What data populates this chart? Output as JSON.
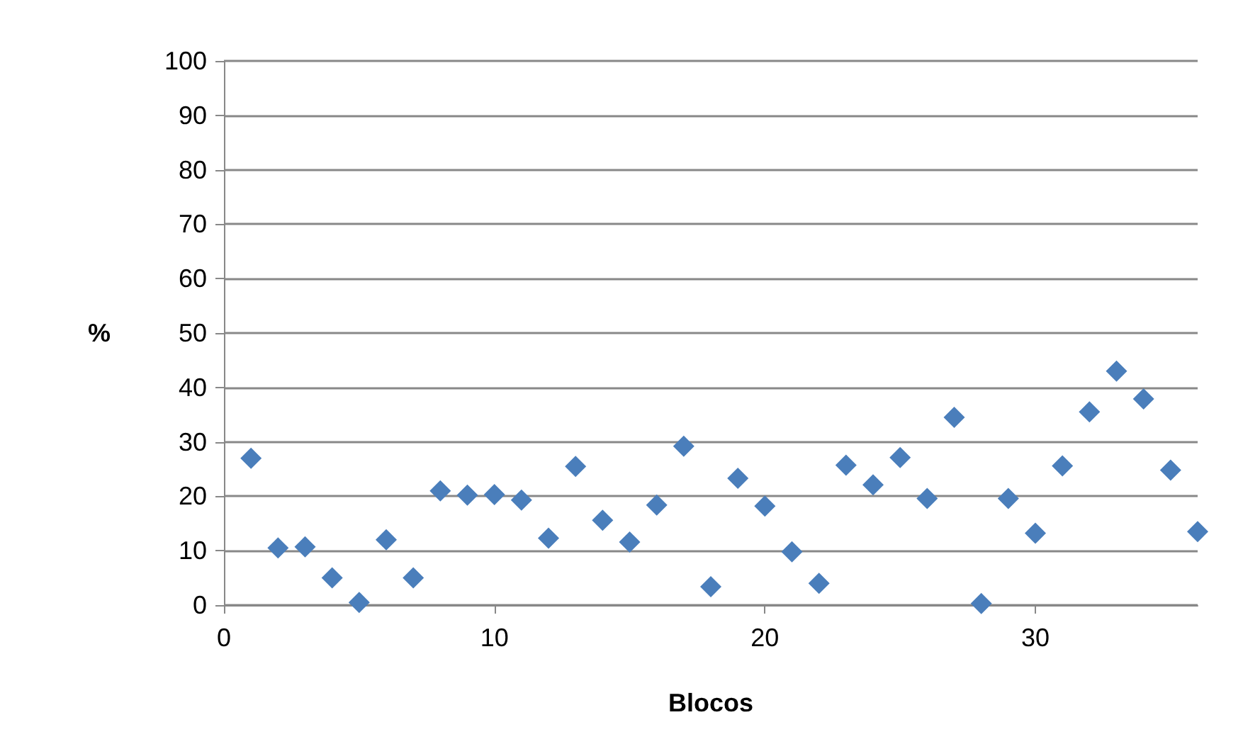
{
  "chart_data": {
    "type": "scatter",
    "xlabel": "Blocos",
    "ylabel": "%",
    "x": [
      1,
      2,
      3,
      4,
      5,
      6,
      7,
      8,
      9,
      10,
      11,
      12,
      13,
      14,
      15,
      16,
      17,
      18,
      19,
      20,
      21,
      22,
      23,
      24,
      25,
      26,
      27,
      28,
      29,
      30,
      31,
      32,
      33,
      34,
      35,
      36
    ],
    "values": [
      27,
      10.5,
      10.7,
      5,
      0.5,
      12,
      5,
      21,
      20.2,
      20.3,
      19.3,
      12.3,
      25.5,
      15.6,
      11.6,
      18.4,
      29.2,
      3.4,
      23.3,
      18.2,
      9.8,
      4,
      25.7,
      22.1,
      27.1,
      19.6,
      34.5,
      0.3,
      19.6,
      13.2,
      25.6,
      35.5,
      43,
      37.9,
      24.8,
      13.5
    ],
    "color": "#4a7ebb",
    "marker": "diamond",
    "xlim": [
      0,
      36
    ],
    "xticks": [
      0,
      10,
      20,
      30
    ],
    "ylim": [
      0,
      100
    ],
    "yticks": [
      0,
      10,
      20,
      30,
      40,
      50,
      60,
      70,
      80,
      90,
      100
    ],
    "grid": "y"
  }
}
